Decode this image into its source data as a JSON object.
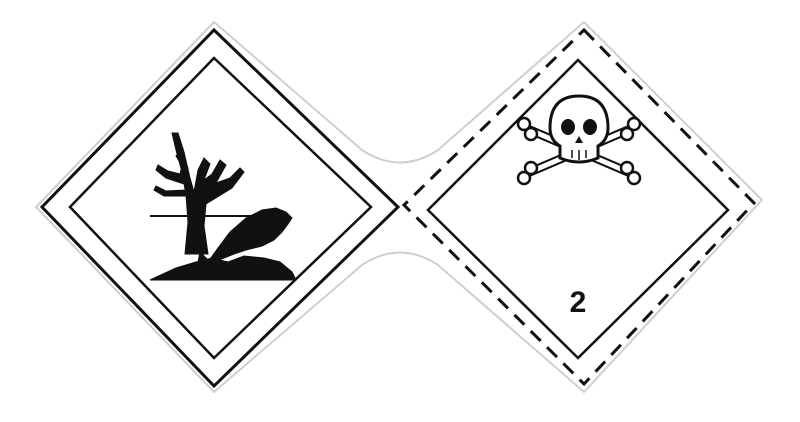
{
  "labels": {
    "environment": {
      "icon": "environmentally-hazardous-substance-icon",
      "border_style": "solid"
    },
    "toxic_gas": {
      "icon": "skull-and-crossbones-icon",
      "border_style": "dashed",
      "class_number": "2"
    }
  },
  "colors": {
    "symbol": "#111111",
    "background": "#ffffff",
    "outline": "#cfcfcf"
  }
}
